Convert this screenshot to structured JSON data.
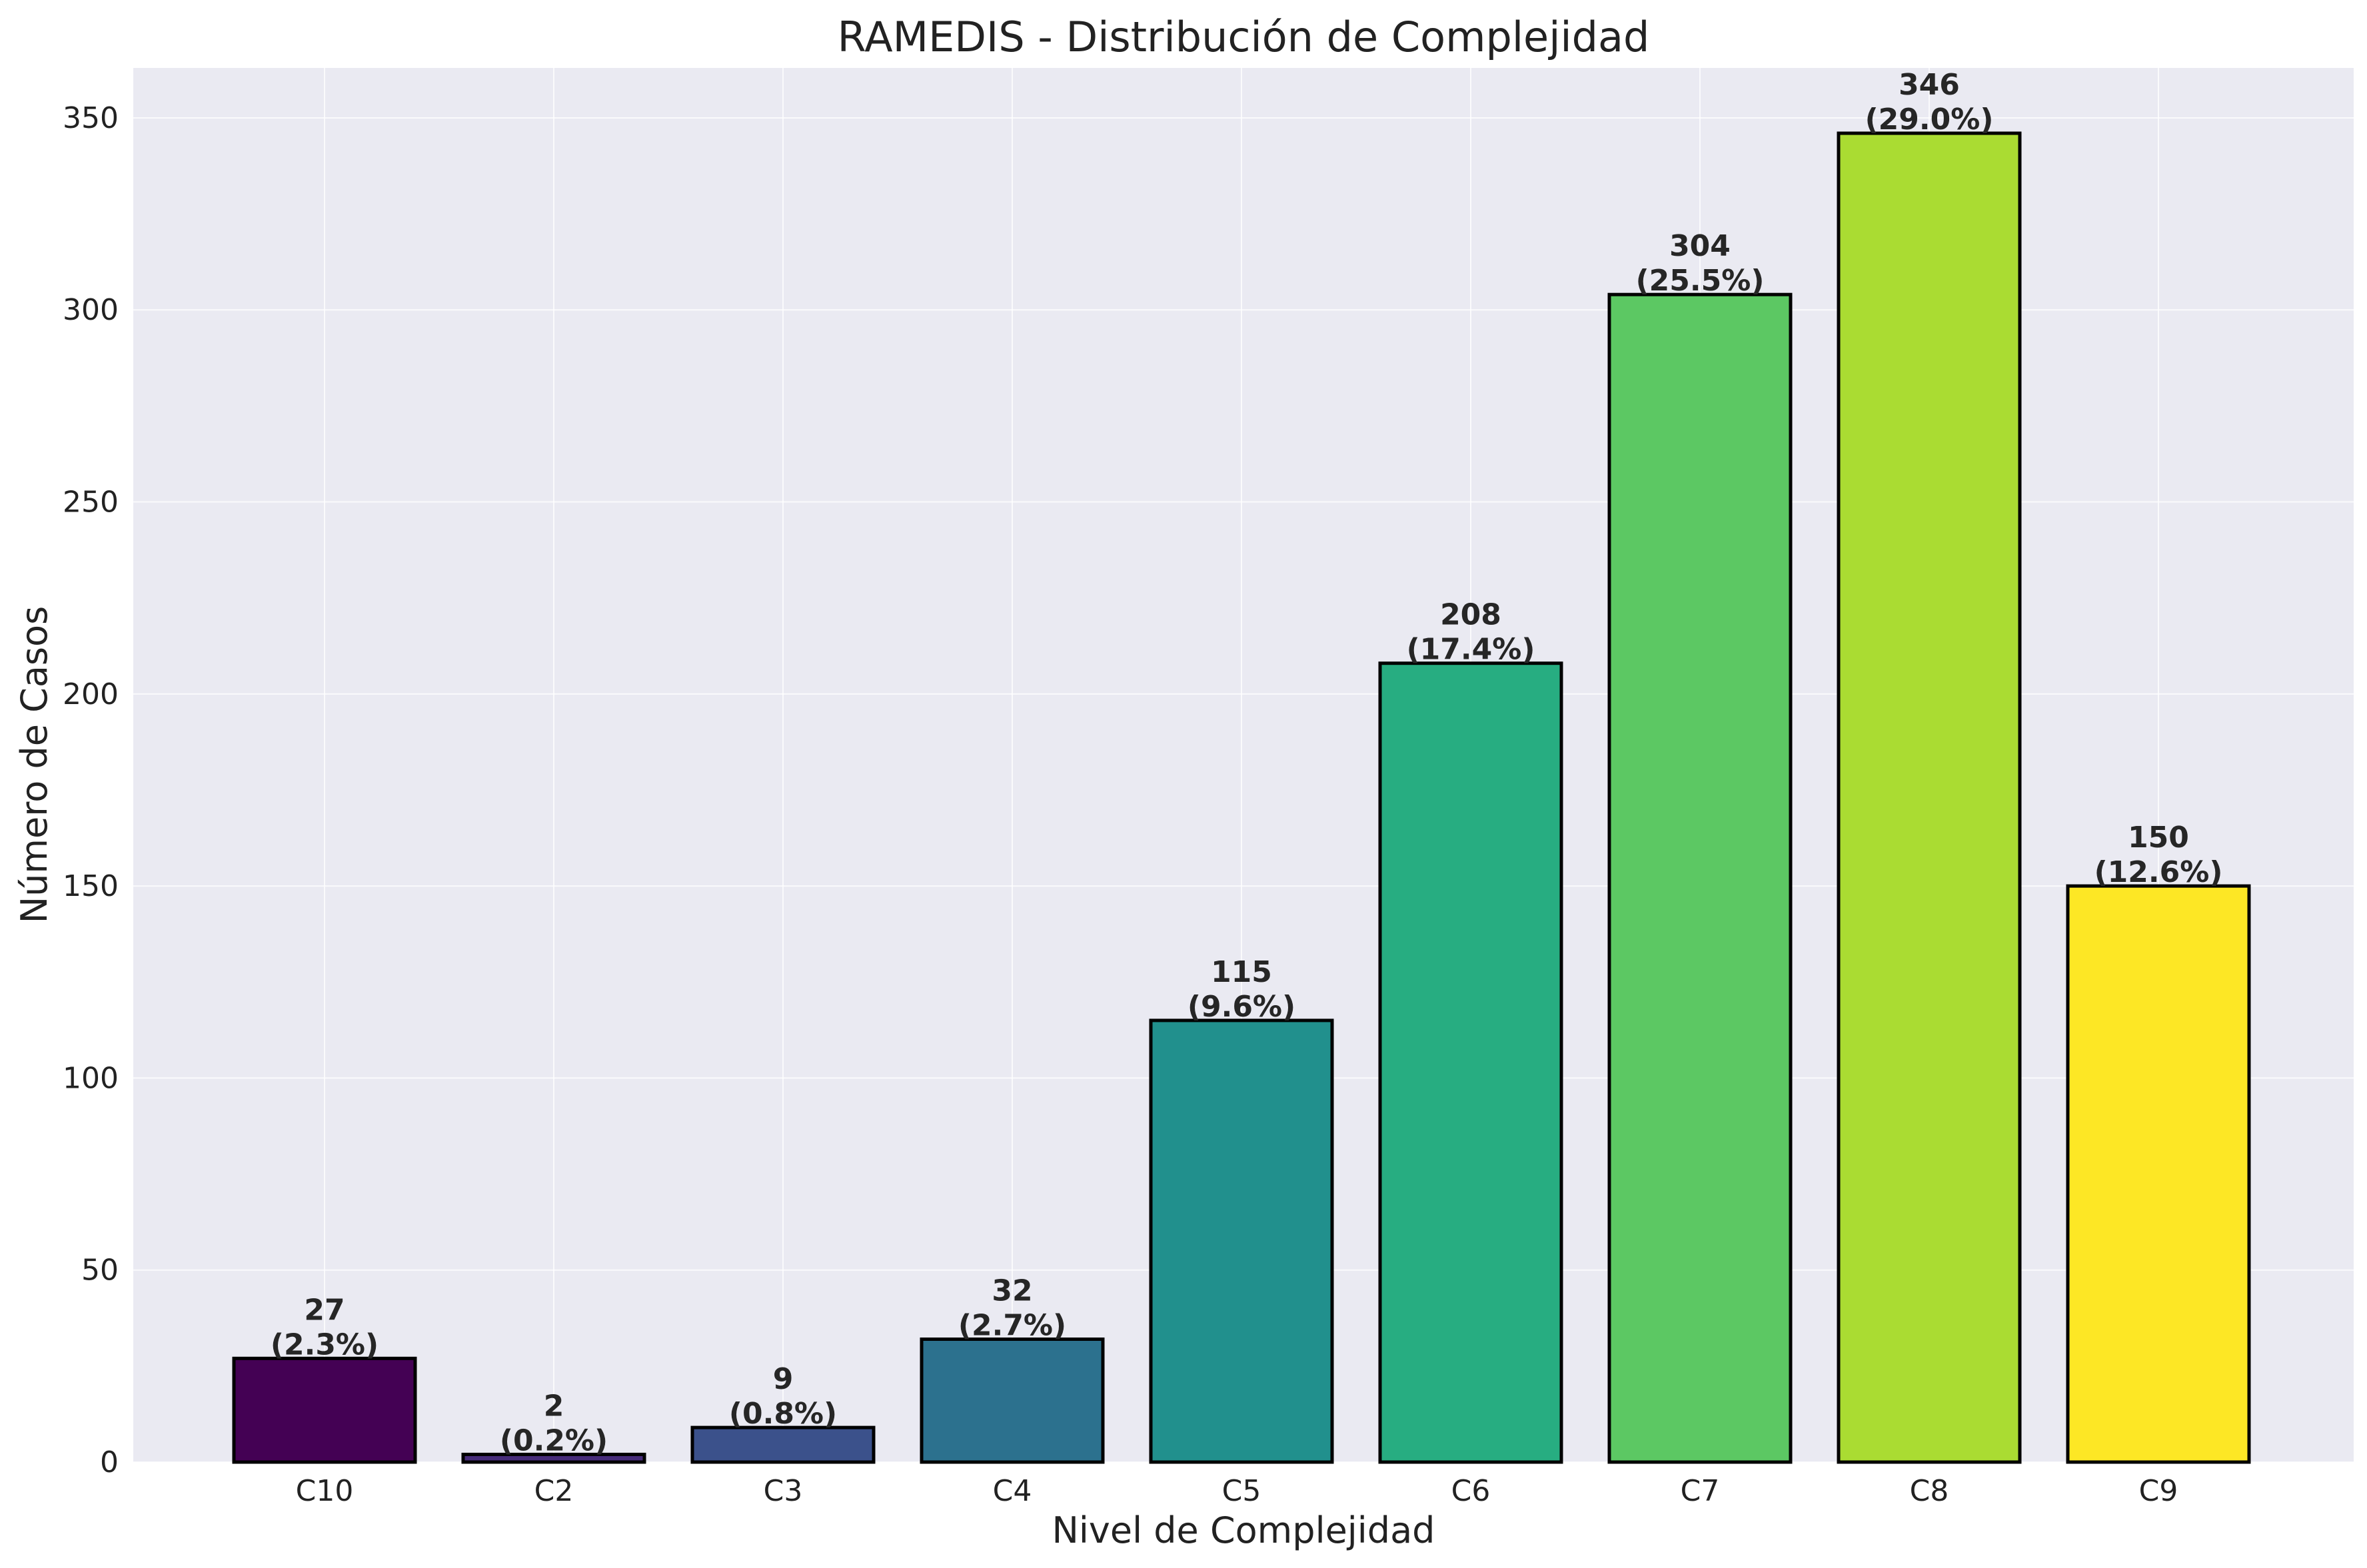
{
  "chart_data": {
    "type": "bar",
    "title": "RAMEDIS - Distribución de Complejidad",
    "xlabel": "Nivel de Complejidad",
    "ylabel": "Número de Casos",
    "categories": [
      "C10",
      "C2",
      "C3",
      "C4",
      "C5",
      "C6",
      "C7",
      "C8",
      "C9"
    ],
    "values": [
      27,
      2,
      9,
      32,
      115,
      208,
      304,
      346,
      150
    ],
    "percent_labels": [
      "(2.3%)",
      "(0.2%)",
      "(0.8%)",
      "(2.7%)",
      "(9.6%)",
      "(17.4%)",
      "(25.5%)",
      "(29.0%)",
      "(12.6%)"
    ],
    "colors": [
      "#440154",
      "#472c7a",
      "#3b518b",
      "#2c718e",
      "#21908d",
      "#27ad81",
      "#5cc863",
      "#aadc32",
      "#fde725"
    ],
    "ylim": [
      0,
      363
    ],
    "yticks": [
      0,
      50,
      100,
      150,
      200,
      250,
      300,
      350
    ],
    "grid": true,
    "background": "#eaeaf2"
  }
}
